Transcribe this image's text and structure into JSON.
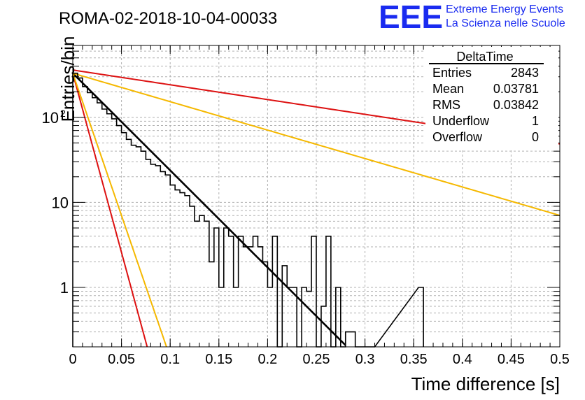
{
  "header": {
    "run_title": "ROMA-02-2018-10-04-00033",
    "logo_text": "EEE",
    "logo_line1": "Extreme Energy Events",
    "logo_line2": "La Scienza nelle Scuole",
    "logo_color": "#1a2bf0"
  },
  "stats_box": {
    "title": "DeltaTime",
    "rows": [
      {
        "label": "Entries",
        "value": "2843"
      },
      {
        "label": "Mean",
        "value": "0.03781"
      },
      {
        "label": "RMS",
        "value": "0.03842"
      },
      {
        "label": "Underflow",
        "value": "1"
      },
      {
        "label": "Overflow",
        "value": "0"
      }
    ]
  },
  "chart_data": {
    "type": "histogram",
    "title": "ROMA-02-2018-10-04-00033",
    "xlabel": "Time difference [s]",
    "ylabel": "Entries/bin",
    "xlim": [
      0,
      0.5
    ],
    "ylim": [
      0.2,
      700
    ],
    "yscale": "log",
    "grid": true,
    "x_ticks": [
      "0",
      "0.05",
      "0.1",
      "0.15",
      "0.2",
      "0.25",
      "0.3",
      "0.35",
      "0.4",
      "0.45",
      "0.5"
    ],
    "y_ticks": [
      {
        "value": 1,
        "label": "1"
      },
      {
        "value": 10,
        "label": "10"
      },
      {
        "value": 100,
        "label": "10",
        "exponent": "2"
      }
    ],
    "bin_width": 0.005,
    "bin_start": 0,
    "histogram": [
      330,
      290,
      230,
      195,
      170,
      148,
      125,
      110,
      96,
      80,
      66,
      55,
      47,
      45,
      40,
      32,
      28,
      27,
      23,
      21,
      16,
      14,
      13,
      12,
      9,
      6,
      7,
      6,
      5,
      5,
      6,
      5,
      4,
      4,
      4,
      3,
      3,
      4,
      3,
      2,
      2,
      2,
      1.9,
      1.8,
      1.5,
      1.3,
      1.0,
      1.0,
      0.9,
      0.9,
      0.7,
      0.6,
      0.5,
      0.5,
      0.4,
      0.35,
      0.3,
      0.3,
      0.26,
      0.24,
      0.22,
      0.21
    ],
    "histogram_overrides": [
      {
        "bin": 28,
        "value": 2
      },
      {
        "bin": 30,
        "value": 1
      },
      {
        "bin": 33,
        "value": 1
      },
      {
        "bin": 40,
        "value": 1
      },
      {
        "bin": 41,
        "value": 4
      },
      {
        "bin": 42,
        "value": 0.1
      },
      {
        "bin": 44,
        "value": 1
      },
      {
        "bin": 45,
        "value": 1
      },
      {
        "bin": 46,
        "value": 0.1
      },
      {
        "bin": 49,
        "value": 4
      },
      {
        "bin": 50,
        "value": 0.1
      },
      {
        "bin": 52,
        "value": 4
      },
      {
        "bin": 53,
        "value": 0.1
      },
      {
        "bin": 54,
        "value": 1
      },
      {
        "bin": 55,
        "value": 0.1
      },
      {
        "bin": 58,
        "value": 0.1
      },
      {
        "bin": 59,
        "value": 0.1
      },
      {
        "bin": 60,
        "value": 0.1
      },
      {
        "bin": 61,
        "value": 0.1
      },
      {
        "bin": 71,
        "value": 1
      }
    ],
    "series": [
      {
        "name": "fit",
        "color": "#000000",
        "type": "exponential",
        "amplitude": 330,
        "slope": -26.3,
        "x_range": [
          0.0,
          0.28
        ]
      },
      {
        "name": "red-steep",
        "color": "#dd1111",
        "type": "exponential",
        "amplitude": 330,
        "slope": -97,
        "x_range": [
          0.0,
          0.09
        ]
      },
      {
        "name": "orange-steep",
        "color": "#f5b800",
        "type": "exponential",
        "amplitude": 330,
        "slope": -77,
        "x_range": [
          0.0,
          0.11
        ]
      },
      {
        "name": "red-shallow",
        "color": "#dd1111",
        "type": "exponential",
        "amplitude": 360,
        "slope": -4.0,
        "x_range": [
          0.0,
          0.5
        ]
      },
      {
        "name": "orange-shallow",
        "color": "#f5b800",
        "type": "exponential",
        "amplitude": 330,
        "slope": -7.7,
        "x_range": [
          0.0,
          0.5
        ]
      }
    ]
  }
}
